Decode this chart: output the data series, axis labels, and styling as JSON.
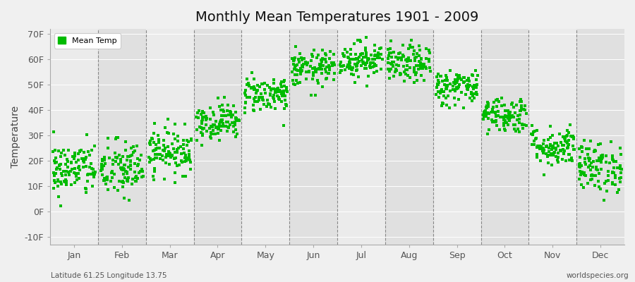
{
  "title": "Monthly Mean Temperatures 1901 - 2009",
  "ylabel": "Temperature",
  "y_label_bottom": "Latitude 61.25 Longitude 13.75",
  "y_label_right": "worldspecies.org",
  "yticks": [
    -10,
    0,
    10,
    20,
    30,
    40,
    50,
    60,
    70
  ],
  "ytick_labels": [
    "-10F",
    "0F",
    "10F",
    "20F",
    "30F",
    "40F",
    "50F",
    "60F",
    "70F"
  ],
  "ylim": [
    -13,
    72
  ],
  "months": [
    "Jan",
    "Feb",
    "Mar",
    "Apr",
    "May",
    "Jun",
    "Jul",
    "Aug",
    "Sep",
    "Oct",
    "Nov",
    "Dec"
  ],
  "dot_color": "#00bb00",
  "background_color": "#f0f0f0",
  "plot_bg_color_light": "#ebebeb",
  "plot_bg_color_dark": "#e0e0e0",
  "legend_label": "Mean Temp",
  "num_years": 109,
  "seed": 42,
  "monthly_means_C": [
    -8.5,
    -8.5,
    -4.5,
    2.0,
    8.0,
    13.5,
    15.5,
    14.5,
    9.5,
    3.5,
    -3.5,
    -8.0
  ],
  "monthly_stds_C": [
    3.0,
    3.2,
    2.5,
    2.0,
    2.0,
    2.0,
    2.0,
    2.0,
    2.0,
    2.0,
    2.2,
    2.8
  ]
}
